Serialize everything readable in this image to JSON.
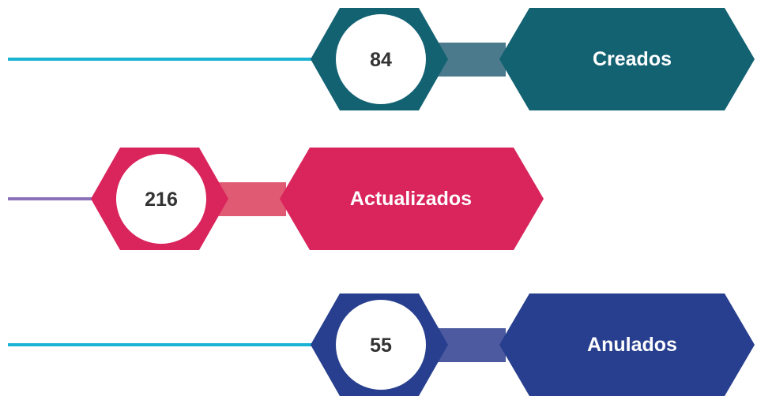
{
  "items": [
    {
      "value": 84,
      "label": "Creados",
      "color": "#136272",
      "connector_color": "#4a7a8c",
      "line_color": "#1ab3d3"
    },
    {
      "value": 216,
      "label": "Actualizados",
      "color": "#d9245c",
      "connector_color": "#e05a74",
      "line_color": "#8b72b8"
    },
    {
      "value": 55,
      "label": "Anulados",
      "color": "#273f8e",
      "connector_color": "#4e5aa0",
      "line_color": "#1ab3d3"
    }
  ]
}
